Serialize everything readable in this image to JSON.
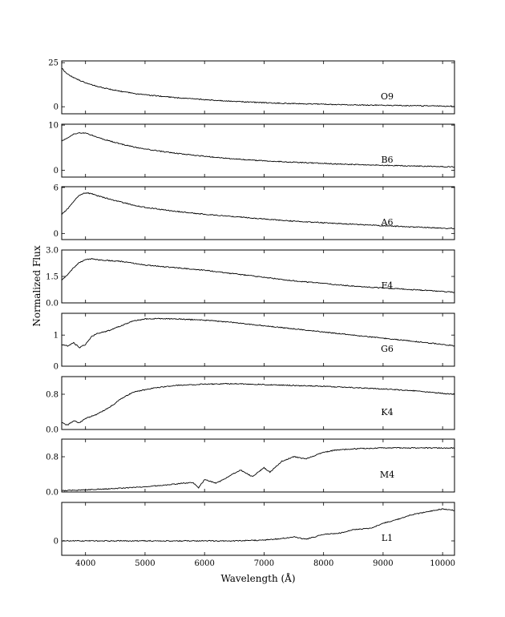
{
  "chart_data": [
    {
      "type": "line",
      "label": "O9",
      "y_ticks": [
        {
          "v": 0,
          "t": "0"
        },
        {
          "v": 25,
          "t": "25"
        }
      ],
      "ylim": [
        -4,
        26
      ],
      "series": [
        {
          "x": [
            3600,
            3650,
            3700,
            3800,
            3900,
            4000,
            4200,
            4400,
            4600,
            4800,
            5000,
            5500,
            6000,
            6500,
            7000,
            7500,
            8000,
            8500,
            9000,
            9500,
            10000,
            10200
          ],
          "y": [
            22,
            20,
            18.5,
            16.5,
            15,
            13.5,
            11.5,
            10,
            8.7,
            7.6,
            6.8,
            5.2,
            4.0,
            3.0,
            2.3,
            1.8,
            1.4,
            1.1,
            0.8,
            0.6,
            0.4,
            0.3
          ]
        }
      ]
    },
    {
      "type": "line",
      "label": "B6",
      "y_ticks": [
        {
          "v": 0,
          "t": "0"
        },
        {
          "v": 10,
          "t": "10"
        }
      ],
      "ylim": [
        -1.5,
        10.2
      ],
      "series": [
        {
          "x": [
            3600,
            3700,
            3800,
            3900,
            4000,
            4100,
            4200,
            4400,
            4600,
            4800,
            5000,
            5500,
            6000,
            6500,
            7000,
            7500,
            8000,
            8500,
            9000,
            9500,
            10000,
            10200
          ],
          "y": [
            6.5,
            7.2,
            8.0,
            8.3,
            8.2,
            7.8,
            7.3,
            6.5,
            5.8,
            5.2,
            4.7,
            3.8,
            3.1,
            2.5,
            2.1,
            1.8,
            1.5,
            1.3,
            1.1,
            0.95,
            0.8,
            0.75
          ]
        }
      ]
    },
    {
      "type": "line",
      "label": "A6",
      "y_ticks": [
        {
          "v": 0,
          "t": "0"
        },
        {
          "v": 6,
          "t": "6"
        }
      ],
      "ylim": [
        -0.8,
        6.1
      ],
      "series": [
        {
          "x": [
            3600,
            3700,
            3800,
            3900,
            4000,
            4100,
            4200,
            4400,
            4600,
            4800,
            5000,
            5500,
            6000,
            6500,
            7000,
            7500,
            8000,
            8500,
            9000,
            9500,
            10000,
            10200
          ],
          "y": [
            2.5,
            3.2,
            4.2,
            5.0,
            5.3,
            5.2,
            4.9,
            4.5,
            4.1,
            3.7,
            3.4,
            2.9,
            2.5,
            2.2,
            1.9,
            1.6,
            1.4,
            1.2,
            1.0,
            0.85,
            0.7,
            0.65
          ]
        }
      ]
    },
    {
      "type": "line",
      "label": "F4",
      "y_ticks": [
        {
          "v": 0,
          "t": "0.0"
        },
        {
          "v": 1.5,
          "t": "1.5"
        },
        {
          "v": 3,
          "t": "3.0"
        }
      ],
      "ylim": [
        0,
        3.0
      ],
      "series": [
        {
          "x": [
            3600,
            3700,
            3800,
            3900,
            4000,
            4100,
            4200,
            4400,
            4600,
            4800,
            5000,
            5500,
            6000,
            6500,
            7000,
            7500,
            8000,
            8500,
            9000,
            9500,
            10000,
            10200
          ],
          "y": [
            1.3,
            1.6,
            2.0,
            2.3,
            2.45,
            2.5,
            2.45,
            2.4,
            2.35,
            2.25,
            2.15,
            2.0,
            1.85,
            1.65,
            1.45,
            1.25,
            1.1,
            0.95,
            0.85,
            0.75,
            0.65,
            0.6
          ]
        }
      ]
    },
    {
      "type": "line",
      "label": "G6",
      "y_ticks": [
        {
          "v": 0,
          "t": "0"
        },
        {
          "v": 1,
          "t": "1"
        }
      ],
      "ylim": [
        0,
        1.7
      ],
      "series": [
        {
          "x": [
            3600,
            3700,
            3800,
            3900,
            4000,
            4100,
            4200,
            4400,
            4600,
            4800,
            5000,
            5200,
            5500,
            6000,
            6500,
            7000,
            7500,
            8000,
            8500,
            9000,
            9500,
            10000,
            10200
          ],
          "y": [
            0.7,
            0.65,
            0.75,
            0.6,
            0.7,
            0.95,
            1.05,
            1.15,
            1.3,
            1.45,
            1.52,
            1.53,
            1.52,
            1.48,
            1.4,
            1.3,
            1.2,
            1.1,
            1.0,
            0.9,
            0.8,
            0.7,
            0.65
          ]
        }
      ]
    },
    {
      "type": "line",
      "label": "K4",
      "y_ticks": [
        {
          "v": 0,
          "t": "0.0"
        },
        {
          "v": 0.8,
          "t": "0.8"
        }
      ],
      "ylim": [
        0,
        1.2
      ],
      "series": [
        {
          "x": [
            3600,
            3700,
            3800,
            3900,
            4000,
            4200,
            4400,
            4600,
            4800,
            5000,
            5200,
            5500,
            6000,
            6500,
            7000,
            7500,
            8000,
            8500,
            9000,
            9500,
            10000,
            10200
          ],
          "y": [
            0.15,
            0.1,
            0.2,
            0.15,
            0.25,
            0.35,
            0.5,
            0.7,
            0.85,
            0.9,
            0.95,
            1.0,
            1.03,
            1.04,
            1.02,
            1.0,
            0.98,
            0.95,
            0.92,
            0.88,
            0.82,
            0.8
          ]
        }
      ]
    },
    {
      "type": "line",
      "label": "M4",
      "y_ticks": [
        {
          "v": 0,
          "t": "0.0"
        },
        {
          "v": 0.8,
          "t": "0.8"
        }
      ],
      "ylim": [
        0,
        1.2
      ],
      "series": [
        {
          "x": [
            3600,
            4000,
            4500,
            5000,
            5500,
            5800,
            5900,
            6000,
            6200,
            6400,
            6600,
            6800,
            7000,
            7100,
            7300,
            7500,
            7700,
            8000,
            8200,
            8500,
            9000,
            9500,
            10000,
            10200
          ],
          "y": [
            0.03,
            0.05,
            0.08,
            0.12,
            0.18,
            0.22,
            0.1,
            0.28,
            0.2,
            0.35,
            0.5,
            0.35,
            0.55,
            0.45,
            0.7,
            0.8,
            0.75,
            0.9,
            0.95,
            0.98,
            1.0,
            1.0,
            1.0,
            1.0
          ]
        }
      ]
    },
    {
      "type": "line",
      "label": "L1",
      "y_ticks": [
        {
          "v": 0,
          "t": "0"
        }
      ],
      "ylim": [
        -0.18,
        0.48
      ],
      "series": [
        {
          "x": [
            3600,
            4000,
            5000,
            6000,
            6500,
            7000,
            7300,
            7500,
            7700,
            8000,
            8300,
            8500,
            8800,
            9000,
            9300,
            9500,
            9800,
            10000,
            10200
          ],
          "y": [
            0,
            0,
            0,
            0,
            0,
            0.01,
            0.03,
            0.05,
            0.02,
            0.08,
            0.1,
            0.14,
            0.16,
            0.22,
            0.28,
            0.33,
            0.37,
            0.4,
            0.38
          ]
        }
      ]
    }
  ],
  "xlim": [
    3600,
    10200
  ],
  "x_ticks": [
    4000,
    5000,
    6000,
    7000,
    8000,
    9000,
    10000
  ],
  "xlabel": "Wavelength (Å)",
  "ylabel": "Normalized Flux"
}
